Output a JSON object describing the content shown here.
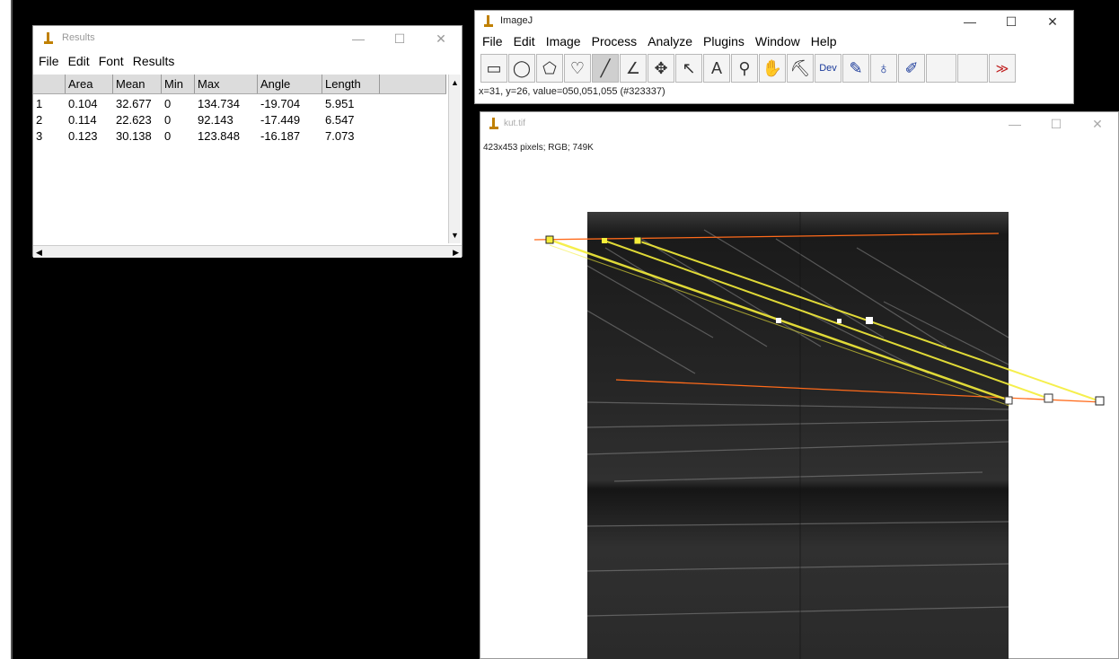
{
  "results_window": {
    "title": "Results",
    "menu": [
      "File",
      "Edit",
      "Font",
      "Results"
    ],
    "columns": [
      "",
      "Area",
      "Mean",
      "Min",
      "Max",
      "Angle",
      "Length"
    ],
    "rows": [
      [
        "1",
        "0.104",
        "32.677",
        "0",
        "134.734",
        "-19.704",
        "5.951"
      ],
      [
        "2",
        "0.114",
        "22.623",
        "0",
        "92.143",
        "-17.449",
        "6.547"
      ],
      [
        "3",
        "0.123",
        "30.138",
        "0",
        "123.848",
        "-16.187",
        "7.073"
      ]
    ]
  },
  "imagej_window": {
    "title": "ImageJ",
    "menu": [
      "File",
      "Edit",
      "Image",
      "Process",
      "Analyze",
      "Plugins",
      "Window",
      "Help"
    ],
    "status": "x=31, y=26, value=050,051,055 (#323337)",
    "tools": [
      {
        "name": "rectangle-tool-icon",
        "glyph": "▭"
      },
      {
        "name": "oval-tool-icon",
        "glyph": "◯"
      },
      {
        "name": "polygon-tool-icon",
        "glyph": "⬠"
      },
      {
        "name": "freehand-tool-icon",
        "glyph": "♡"
      },
      {
        "name": "line-tool-icon",
        "glyph": "╱",
        "active": true
      },
      {
        "name": "angle-tool-icon",
        "glyph": "∠"
      },
      {
        "name": "point-tool-icon",
        "glyph": "✥"
      },
      {
        "name": "wand-tool-icon",
        "glyph": "↖"
      },
      {
        "name": "arrow-tool-icon",
        "glyph": "↖"
      },
      {
        "name": "text-tool-icon",
        "glyph": "A"
      },
      {
        "name": "magnifier-tool-icon",
        "glyph": "⚲"
      },
      {
        "name": "hand-tool-icon",
        "glyph": "✋"
      },
      {
        "name": "color-picker-tool-icon",
        "glyph": "⛏"
      },
      {
        "name": "developer-menu-icon",
        "glyph": "Dev"
      },
      {
        "name": "brush-tool-icon",
        "glyph": "✎"
      },
      {
        "name": "flood-fill-tool-icon",
        "glyph": "♁"
      },
      {
        "name": "pencil-tool-icon",
        "glyph": "✐"
      }
    ],
    "more_tools_glyph": "≫"
  },
  "image_window": {
    "title": "kut.tif",
    "info": "423x453 pixels; RGB; 749K"
  },
  "overlay_colors": {
    "roi_line": "#f5ee3a",
    "reference_line": "#ff6a1a"
  }
}
